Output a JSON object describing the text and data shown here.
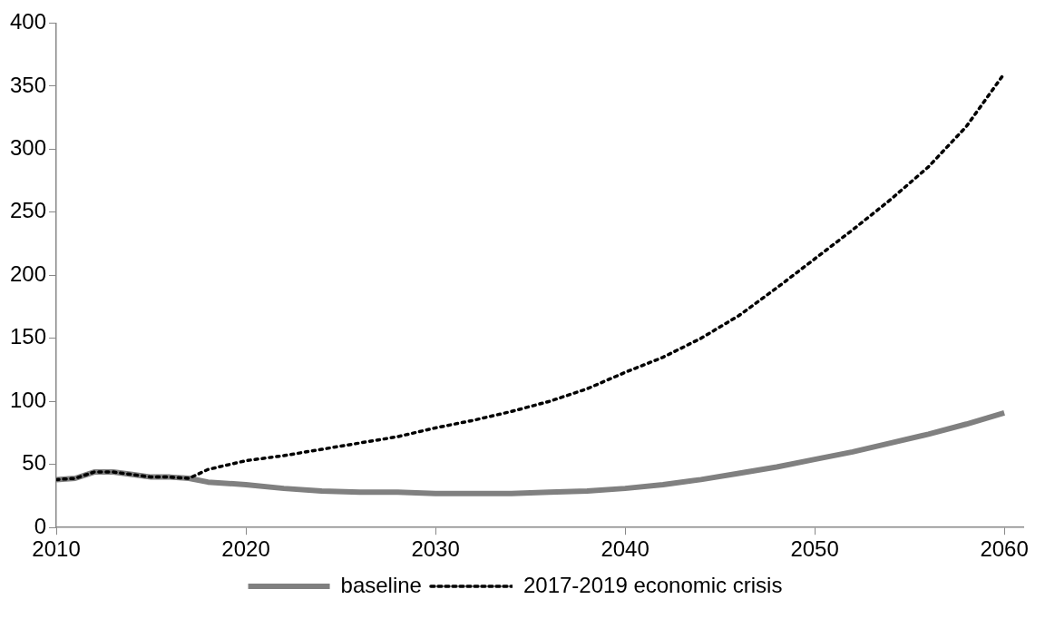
{
  "chart_data": {
    "type": "line",
    "x": [
      2010,
      2011,
      2012,
      2013,
      2014,
      2015,
      2016,
      2017,
      2018,
      2020,
      2022,
      2024,
      2026,
      2028,
      2030,
      2032,
      2034,
      2036,
      2038,
      2040,
      2042,
      2044,
      2046,
      2048,
      2050,
      2052,
      2054,
      2056,
      2058,
      2060
    ],
    "series": [
      {
        "name": "baseline",
        "color": "#808080",
        "line_style": "solid",
        "values": [
          38,
          39,
          44,
          44,
          42,
          40,
          40,
          39,
          36,
          34,
          31,
          29,
          28,
          28,
          27,
          27,
          27,
          28,
          29,
          31,
          34,
          38,
          43,
          48,
          54,
          60,
          67,
          74,
          82,
          91
        ]
      },
      {
        "name": "2017-2019 economic crisis",
        "color": "#000000",
        "line_style": "dotted",
        "values": [
          38,
          39,
          44,
          44,
          42,
          40,
          40,
          39,
          46,
          53,
          57,
          62,
          67,
          72,
          79,
          85,
          92,
          100,
          110,
          123,
          135,
          150,
          168,
          190,
          213,
          236,
          260,
          286,
          318,
          360
        ]
      }
    ],
    "xlim": [
      2010,
      2061
    ],
    "xticks": [
      2010,
      2020,
      2030,
      2040,
      2050,
      2060
    ],
    "ylim": [
      0,
      400
    ],
    "yticks": [
      0,
      50,
      100,
      150,
      200,
      250,
      300,
      350,
      400
    ],
    "grid": false,
    "legend": "bottom",
    "marker": "none"
  }
}
